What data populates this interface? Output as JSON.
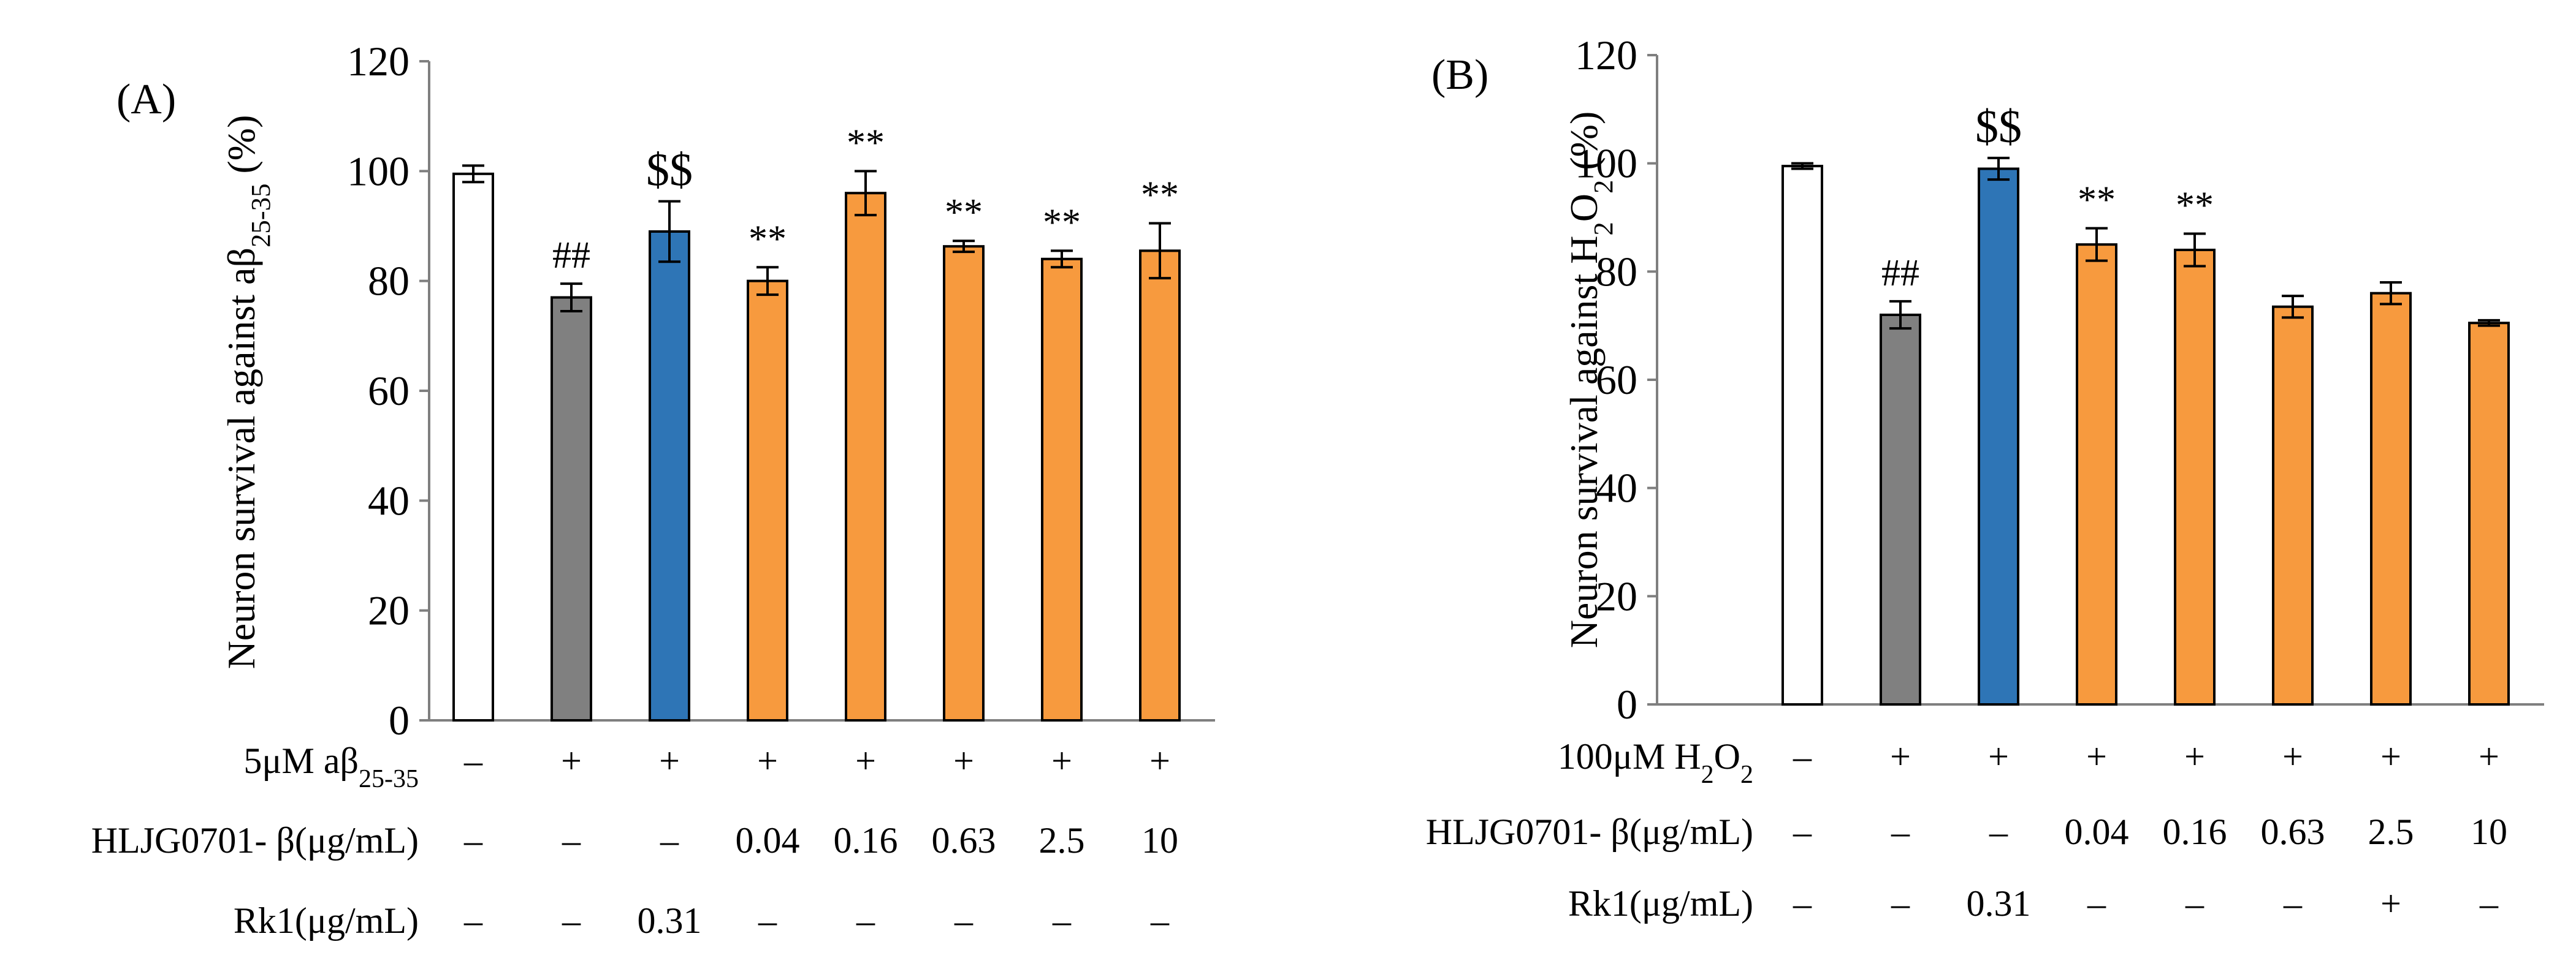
{
  "chart_data": [
    {
      "type": "bar",
      "panel_label": "(A)",
      "ylabel": "Neuron survival against aβ25-35 (%)",
      "ylabel_parts": {
        "pre": "Neuron survival against aβ",
        "sub": "25-35",
        "post": " (%)"
      },
      "ylim": [
        0,
        120
      ],
      "yticks": [
        "0",
        "20",
        "40",
        "60",
        "80",
        "100",
        "120"
      ],
      "series": [
        {
          "name": "Neuron survival",
          "values": [
            99.5,
            77,
            89,
            80,
            96,
            86.3,
            84,
            85.5
          ],
          "errors": [
            1.5,
            2.5,
            5.5,
            2.5,
            4,
            1,
            1.5,
            5
          ],
          "colors": [
            "#FFFFFF",
            "#808080",
            "#2E75B6",
            "#F79A3E",
            "#F79A3E",
            "#F79A3E",
            "#F79A3E",
            "#F79A3E"
          ]
        }
      ],
      "annotations": [
        "",
        "##",
        "$$",
        "**",
        "**",
        "**",
        "**",
        "**"
      ],
      "rows": [
        {
          "label": "5μM aβ25-35",
          "label_parts": {
            "pre": "5μM aβ",
            "sub": "25-35",
            "post": ""
          },
          "values": [
            "–",
            "+",
            "+",
            "+",
            "+",
            "+",
            "+",
            "+"
          ]
        },
        {
          "label": "HLJG0701- β(μg/mL)",
          "label_parts": {
            "pre": "HLJG0701- β(μg/mL)",
            "sub": "",
            "post": ""
          },
          "values": [
            "–",
            "–",
            "–",
            "0.04",
            "0.16",
            "0.63",
            "2.5",
            "10"
          ]
        },
        {
          "label": "Rk1(μg/mL)",
          "label_parts": {
            "pre": "Rk1(μg/mL)",
            "sub": "",
            "post": ""
          },
          "values": [
            "–",
            "–",
            "0.31",
            "–",
            "–",
            "–",
            "–",
            "–"
          ]
        }
      ]
    },
    {
      "type": "bar",
      "panel_label": "(B)",
      "ylabel": "Neuron survival against H2O2 (%)",
      "ylabel_parts": {
        "pre": "Neuron survival against H",
        "sub": "2",
        "mid": "O",
        "sub2": "2",
        "post": " (%)"
      },
      "ylim": [
        0,
        120
      ],
      "yticks": [
        "0",
        "20",
        "40",
        "60",
        "80",
        "100",
        "120"
      ],
      "series": [
        {
          "name": "Neuron survival",
          "values": [
            99.5,
            72,
            99,
            85,
            84,
            73.5,
            76,
            70.5
          ],
          "errors": [
            0.5,
            2.5,
            2,
            3,
            3,
            2,
            2,
            0.5
          ],
          "colors": [
            "#FFFFFF",
            "#808080",
            "#2E75B6",
            "#F79A3E",
            "#F79A3E",
            "#F79A3E",
            "#F79A3E",
            "#F79A3E"
          ]
        }
      ],
      "annotations": [
        "",
        "##",
        "$$",
        "**",
        "**",
        "",
        "",
        ""
      ],
      "rows": [
        {
          "label": "100μM H2O2",
          "label_parts": {
            "pre": "100μM H",
            "sub": "2",
            "mid": "O",
            "sub2": "2",
            "post": ""
          },
          "values": [
            "–",
            "+",
            "+",
            "+",
            "+",
            "+",
            "+",
            "+"
          ]
        },
        {
          "label": "HLJG0701- β(μg/mL)",
          "label_parts": {
            "pre": "HLJG0701- β(μg/mL)",
            "sub": "",
            "post": ""
          },
          "values": [
            "–",
            "–",
            "–",
            "0.04",
            "0.16",
            "0.63",
            "2.5",
            "10"
          ]
        },
        {
          "label": "Rk1(μg/mL)",
          "label_parts": {
            "pre": "Rk1(μg/mL)",
            "sub": "",
            "post": ""
          },
          "values": [
            "–",
            "–",
            "0.31",
            "–",
            "–",
            "–",
            "+",
            "–"
          ]
        }
      ]
    }
  ]
}
